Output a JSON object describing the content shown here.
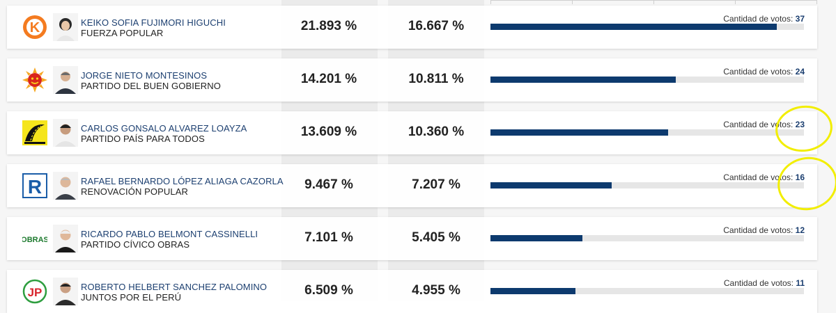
{
  "votes_label": "Cantidad de votos:",
  "colors": {
    "accent": "#1c3f70",
    "bar": "#0d3a6e",
    "highlight": "#f2ee00"
  },
  "rows": [
    {
      "candidate": "KEIKO SOFIA FUJIMORI HIGUCHI",
      "party": "FUERZA POPULAR",
      "pct_valid": "21.893 %",
      "pct_emitted": "16.667 %",
      "votes": "37",
      "party_logo": "k-orange-logo",
      "bar_fraction": 0.913
    },
    {
      "candidate": "JORGE NIETO MONTESINOS",
      "party": "PARTIDO DEL BUEN GOBIERNO",
      "pct_valid": "14.201 %",
      "pct_emitted": "10.811 %",
      "votes": "24",
      "party_logo": "sun-logo",
      "bar_fraction": 0.591
    },
    {
      "candidate": "CARLOS GONSALO ALVAREZ LOAYZA",
      "party": "PARTIDO PAÍS PARA TODOS",
      "pct_valid": "13.609 %",
      "pct_emitted": "10.360 %",
      "votes": "23",
      "party_logo": "road-logo",
      "bar_fraction": 0.567
    },
    {
      "candidate": "RAFAEL BERNARDO LÓPEZ ALIAGA CAZORLA",
      "party": "RENOVACIÓN POPULAR",
      "pct_valid": "9.467 %",
      "pct_emitted": "7.207 %",
      "votes": "16",
      "party_logo": "r-blue-logo",
      "bar_fraction": 0.387
    },
    {
      "candidate": "RICARDO PABLO BELMONT CASSINELLI",
      "party": "PARTIDO CÍVICO OBRAS",
      "pct_valid": "7.101 %",
      "pct_emitted": "5.405 %",
      "votes": "12",
      "party_logo": "obras-logo",
      "logo_text": "OBRAS",
      "bar_fraction": 0.293
    },
    {
      "candidate": "ROBERTO HELBERT SANCHEZ PALOMINO",
      "party": "JUNTOS POR EL PERÚ",
      "pct_valid": "6.509 %",
      "pct_emitted": "4.955 %",
      "votes": "11",
      "party_logo": "jp-logo",
      "logo_text": "JP",
      "bar_fraction": 0.27
    }
  ]
}
